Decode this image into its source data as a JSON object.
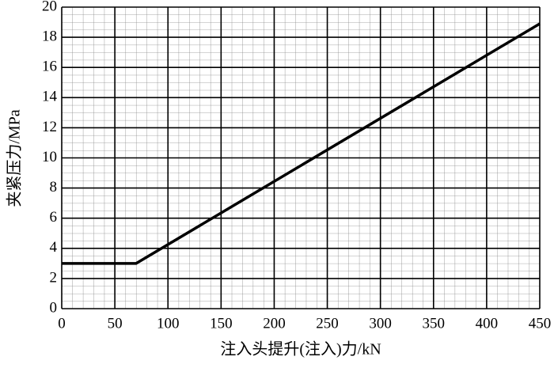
{
  "chart_data": {
    "type": "line",
    "x_label": "注入头提升(注入)力/kN",
    "y_label": "夹紧压力/MPa",
    "x": [
      0,
      70,
      450
    ],
    "series": [
      {
        "color": "#000000",
        "values": [
          3,
          3,
          18.9
        ]
      }
    ],
    "xlim": [
      0,
      450
    ],
    "xticks": [
      0,
      50,
      100,
      150,
      200,
      250,
      300,
      350,
      400,
      450
    ],
    "ylim": [
      0,
      20
    ],
    "yticks": [
      0,
      2,
      4,
      6,
      8,
      10,
      12,
      14,
      16,
      18,
      20
    ],
    "grid": true
  }
}
